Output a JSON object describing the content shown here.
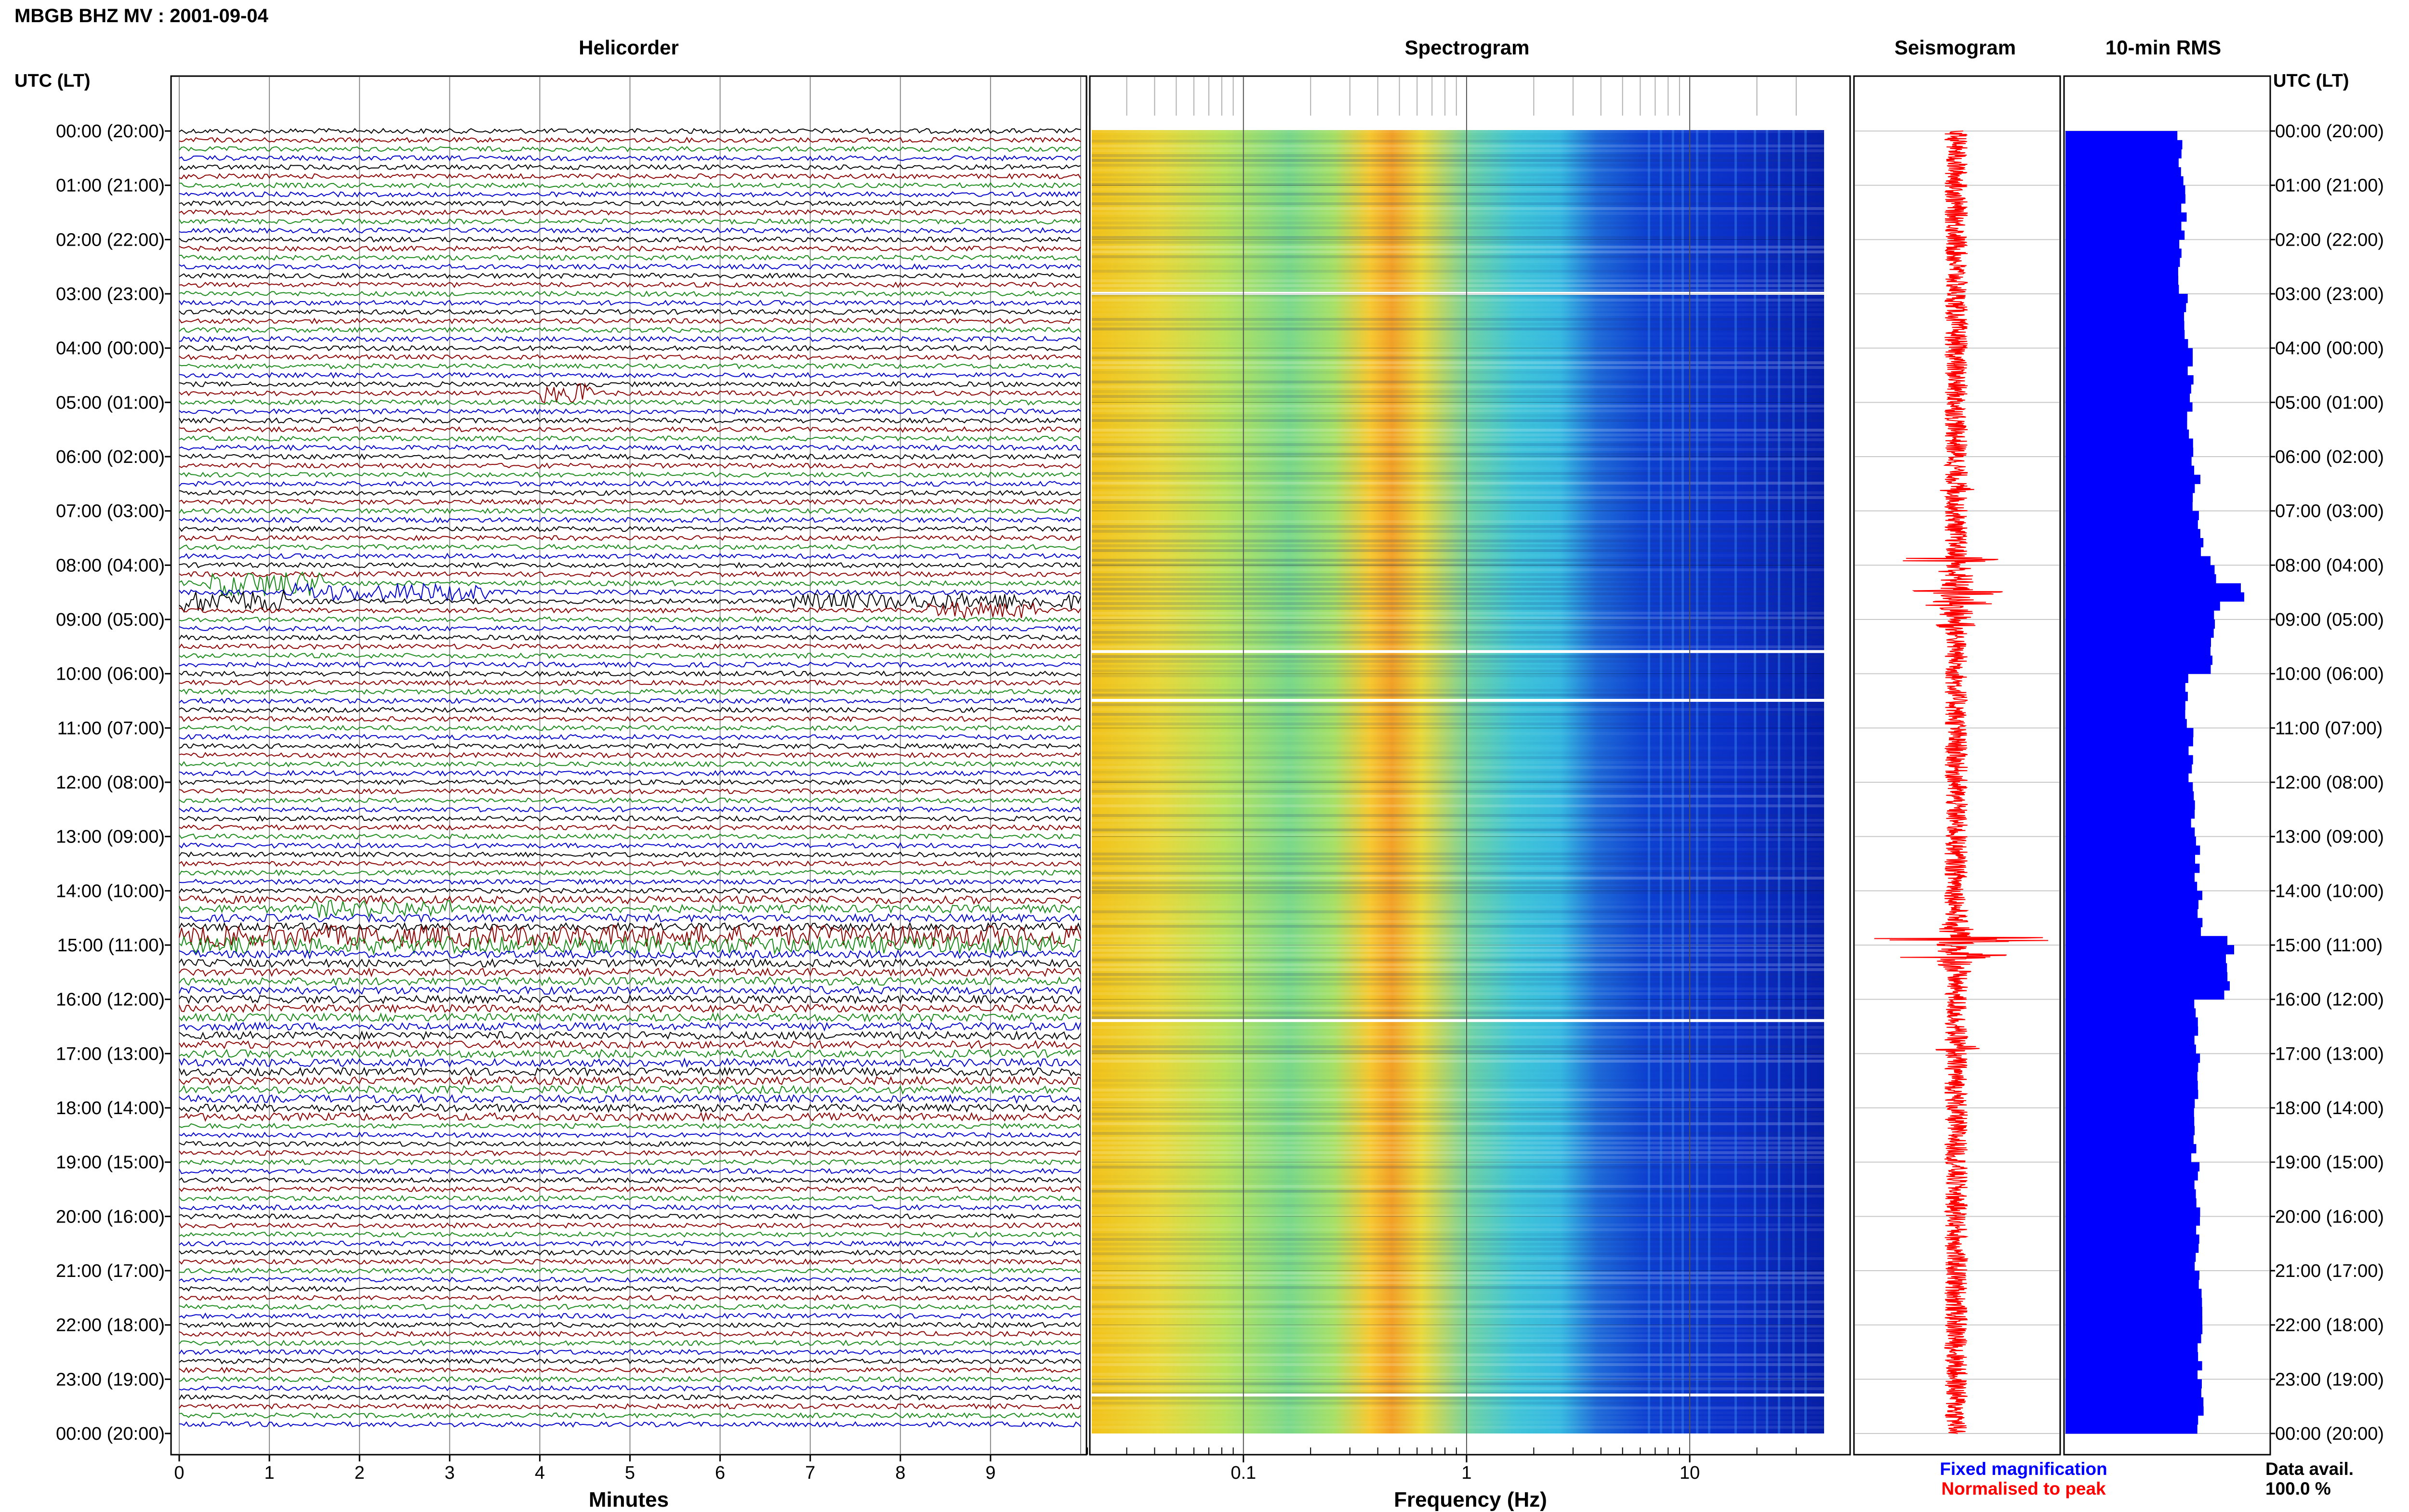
{
  "page_title": "MBGB BHZ MV : 2001-09-04",
  "axis": {
    "left_label": "UTC (LT)",
    "right_label": "UTC (LT)",
    "time_ticks": [
      "00:00 (20:00)",
      "01:00 (21:00)",
      "02:00 (22:00)",
      "03:00 (23:00)",
      "04:00 (00:00)",
      "05:00 (01:00)",
      "06:00 (02:00)",
      "07:00 (03:00)",
      "08:00 (04:00)",
      "09:00 (05:00)",
      "10:00 (06:00)",
      "11:00 (07:00)",
      "12:00 (08:00)",
      "13:00 (09:00)",
      "14:00 (10:00)",
      "15:00 (11:00)",
      "16:00 (12:00)",
      "17:00 (13:00)",
      "18:00 (14:00)",
      "19:00 (15:00)",
      "20:00 (16:00)",
      "21:00 (17:00)",
      "22:00 (18:00)",
      "23:00 (19:00)",
      "00:00 (20:00)"
    ]
  },
  "panels": {
    "helicorder": {
      "title": "Helicorder",
      "xlabel": "Minutes",
      "ticks": [
        "0",
        "1",
        "2",
        "3",
        "4",
        "5",
        "6",
        "7",
        "8",
        "9"
      ]
    },
    "spectrogram": {
      "title": "Spectrogram",
      "xlabel": "Frequency (Hz)",
      "ticks": [
        "0.1",
        "1",
        "10"
      ]
    },
    "seismogram": {
      "title": "Seismogram",
      "note_fixed": "Fixed magnification",
      "note_normalised": "Normalised to peak"
    },
    "rms": {
      "title": "10-min RMS"
    }
  },
  "footer": {
    "data_avail_label": "Data avail.",
    "data_avail_value": "100.0 %"
  },
  "colors": {
    "trace_cycle": [
      "#000000",
      "#8b0000",
      "#1a8a1a",
      "#0000cc"
    ],
    "rms_bar": "#0000ff",
    "seismogram_trace": "#ff0000",
    "fixed_magnification_text": "#0000ff",
    "normalised_text": "#ff0000"
  },
  "chart_data": {
    "type": "bar",
    "title": "10-min RMS",
    "categories_note": "144 ten-minute intervals from 00:00 to 24:00 UTC",
    "rms_hourly_means": [
      0.34,
      0.35,
      0.34,
      0.36,
      0.37,
      0.37,
      0.38,
      0.4,
      0.45,
      0.44,
      0.36,
      0.37,
      0.38,
      0.39,
      0.4,
      0.48,
      0.39,
      0.39,
      0.38,
      0.39,
      0.39,
      0.4,
      0.4,
      0.4
    ],
    "rms_peaks": [
      {
        "time": "06:20",
        "value": 0.4
      },
      {
        "time": "07:50",
        "value": 0.43
      },
      {
        "time": "08:20",
        "value": 0.52
      },
      {
        "time": "08:30",
        "value": 0.53
      },
      {
        "time": "14:50",
        "value": 0.48
      },
      {
        "time": "15:00",
        "value": 0.5
      }
    ],
    "data_availability_percent": 100.0
  }
}
